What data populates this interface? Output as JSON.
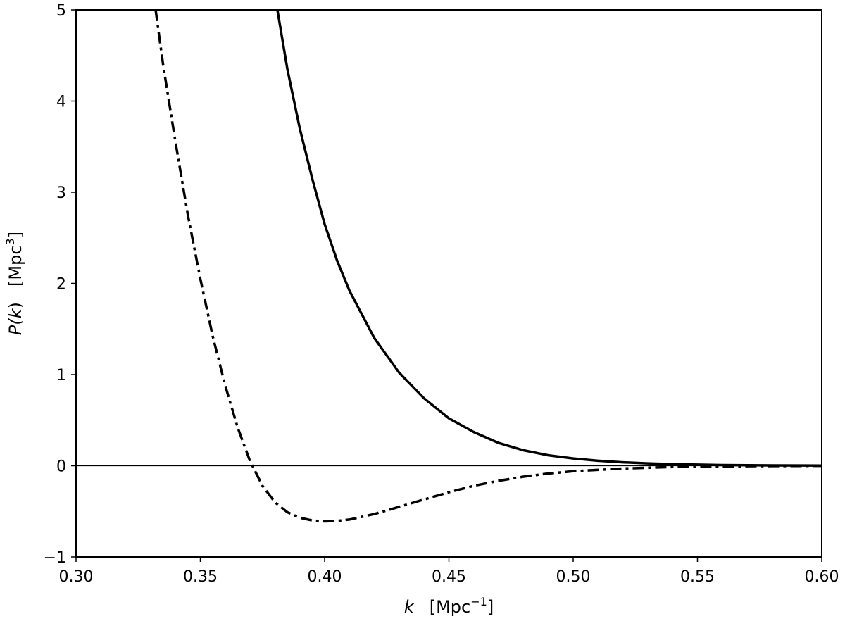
{
  "chart_data": {
    "type": "line",
    "xlabel": {
      "var": "k",
      "unit_open": "[Mpc",
      "unit_sup": "−1",
      "unit_close": "]"
    },
    "ylabel": {
      "prefix": "P(",
      "var": "k",
      "suffix": ")",
      "unit_open": "[Mpc",
      "unit_sup": "3",
      "unit_close": "]"
    },
    "xlim": [
      0.3,
      0.6
    ],
    "ylim": [
      -1,
      5
    ],
    "x_ticks": [
      0.3,
      0.35,
      0.4,
      0.45,
      0.5,
      0.55,
      0.6
    ],
    "x_tick_labels": [
      "0.30",
      "0.35",
      "0.40",
      "0.45",
      "0.50",
      "0.55",
      "0.60"
    ],
    "y_ticks": [
      -1,
      0,
      1,
      2,
      3,
      4,
      5
    ],
    "y_tick_labels": [
      "−1",
      "0",
      "1",
      "2",
      "3",
      "4",
      "5"
    ],
    "grid": false,
    "reference_lines": [
      {
        "y": 0
      }
    ],
    "series": [
      {
        "style": "solid",
        "color": "#000000",
        "x": [
          0.381,
          0.385,
          0.39,
          0.395,
          0.4,
          0.405,
          0.41,
          0.42,
          0.43,
          0.44,
          0.45,
          0.46,
          0.47,
          0.48,
          0.49,
          0.5,
          0.51,
          0.52,
          0.53,
          0.54,
          0.55,
          0.56,
          0.58,
          0.6
        ],
        "y": [
          5.0,
          4.35,
          3.7,
          3.15,
          2.65,
          2.25,
          1.92,
          1.4,
          1.02,
          0.74,
          0.52,
          0.37,
          0.25,
          0.17,
          0.115,
          0.08,
          0.055,
          0.038,
          0.026,
          0.018,
          0.012,
          0.008,
          0.004,
          0.002
        ]
      },
      {
        "style": "dash-dot",
        "color": "#000000",
        "x": [
          0.332,
          0.335,
          0.34,
          0.345,
          0.35,
          0.355,
          0.36,
          0.365,
          0.37,
          0.375,
          0.38,
          0.385,
          0.39,
          0.395,
          0.4,
          0.405,
          0.41,
          0.42,
          0.43,
          0.44,
          0.45,
          0.46,
          0.47,
          0.48,
          0.49,
          0.5,
          0.52,
          0.54,
          0.56,
          0.58,
          0.6
        ],
        "y": [
          5.0,
          4.4,
          3.55,
          2.75,
          2.05,
          1.42,
          0.88,
          0.42,
          0.05,
          -0.22,
          -0.4,
          -0.51,
          -0.57,
          -0.6,
          -0.61,
          -0.605,
          -0.59,
          -0.53,
          -0.45,
          -0.37,
          -0.29,
          -0.22,
          -0.165,
          -0.12,
          -0.085,
          -0.06,
          -0.03,
          -0.014,
          -0.007,
          -0.003,
          -0.001
        ]
      }
    ]
  }
}
